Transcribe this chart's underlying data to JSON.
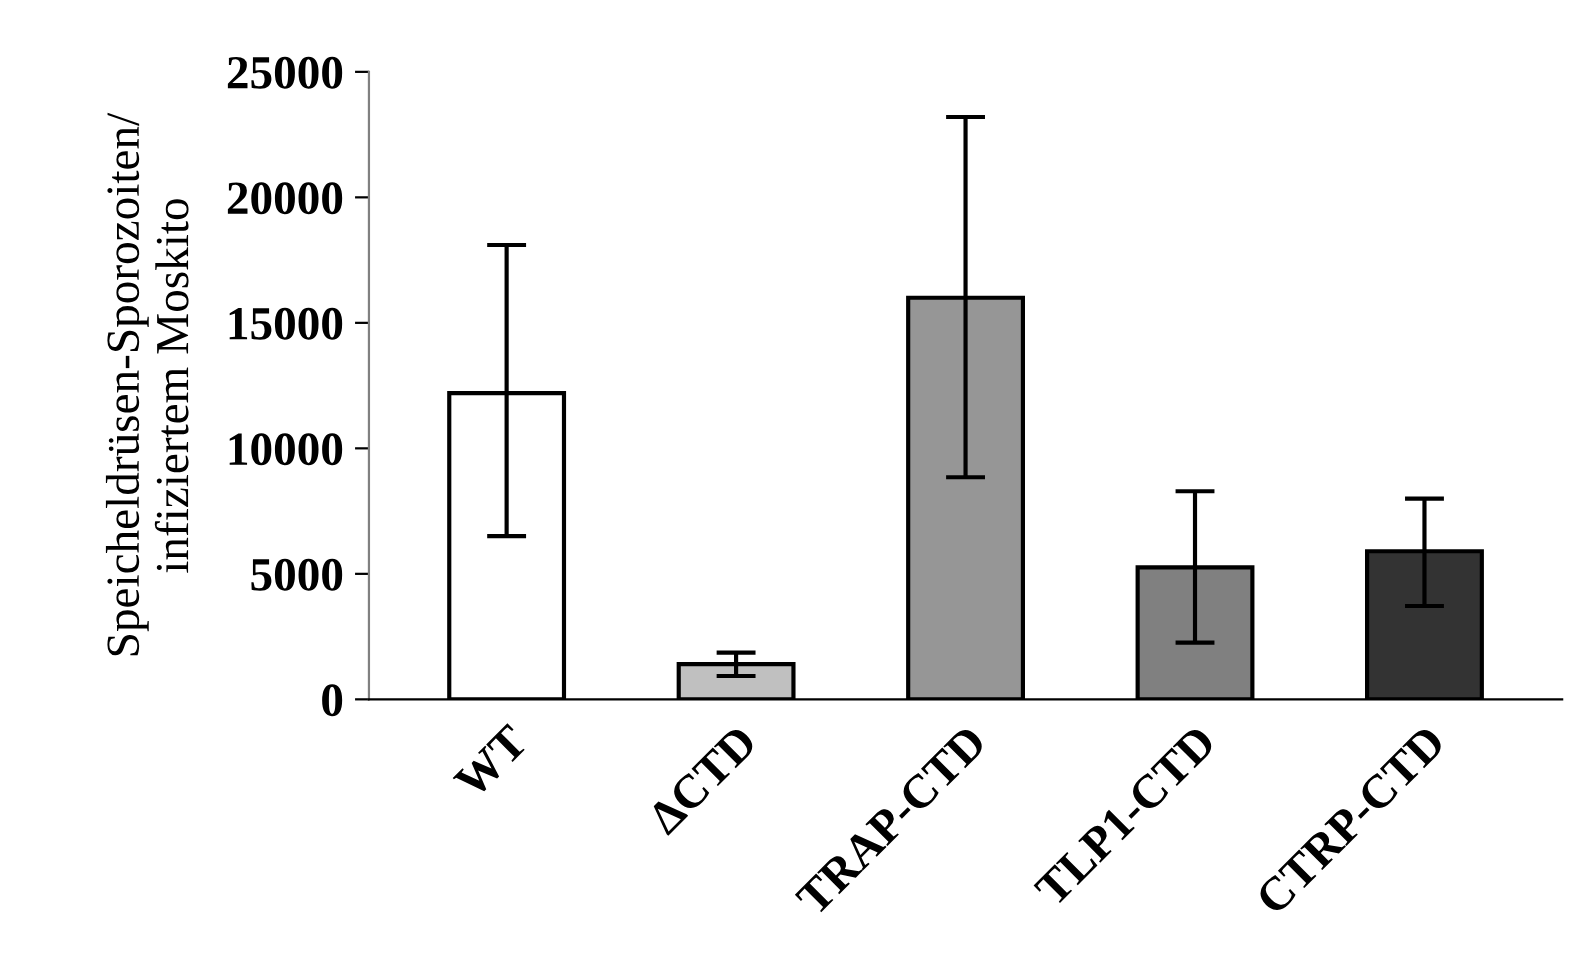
{
  "chart_data": {
    "type": "bar",
    "ylabel": "Speicheldrüsen-Sporozoiten/\ninfiziertem Moskito",
    "categories": [
      "WT",
      "ΔCTD",
      "TRAP-CTD",
      "TLP1-CTD",
      "CTRP-CTD"
    ],
    "values": [
      12200,
      1400,
      16000,
      5260,
      5900
    ],
    "errors": [
      [
        6500,
        18100
      ],
      [
        930,
        1860
      ],
      [
        8850,
        23200
      ],
      [
        2260,
        8290
      ],
      [
        3720,
        8000
      ]
    ],
    "colors": [
      "#ffffff",
      "#c0c0c0",
      "#969696",
      "#808080",
      "#333333"
    ],
    "ylim": [
      0,
      25000
    ],
    "yticks": [
      0,
      5000,
      10000,
      15000,
      20000,
      25000
    ],
    "grid": false,
    "legend": false
  }
}
